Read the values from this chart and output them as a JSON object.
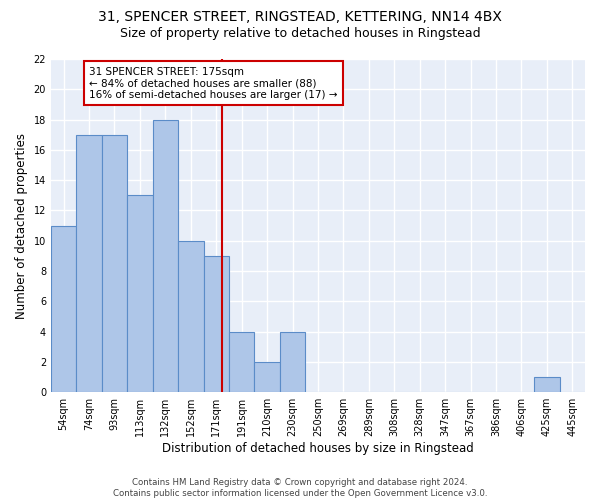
{
  "title1": "31, SPENCER STREET, RINGSTEAD, KETTERING, NN14 4BX",
  "title2": "Size of property relative to detached houses in Ringstead",
  "xlabel": "Distribution of detached houses by size in Ringstead",
  "ylabel": "Number of detached properties",
  "categories": [
    "54sqm",
    "74sqm",
    "93sqm",
    "113sqm",
    "132sqm",
    "152sqm",
    "171sqm",
    "191sqm",
    "210sqm",
    "230sqm",
    "250sqm",
    "269sqm",
    "289sqm",
    "308sqm",
    "328sqm",
    "347sqm",
    "367sqm",
    "386sqm",
    "406sqm",
    "425sqm",
    "445sqm"
  ],
  "values": [
    11,
    17,
    17,
    13,
    18,
    10,
    9,
    4,
    2,
    4,
    0,
    0,
    0,
    0,
    0,
    0,
    0,
    0,
    0,
    1,
    0
  ],
  "bar_color": "#aec6e8",
  "bar_edge_color": "#5b8cc8",
  "vline_x": 6.22,
  "vline_color": "#cc0000",
  "annotation_text": "31 SPENCER STREET: 175sqm\n← 84% of detached houses are smaller (88)\n16% of semi-detached houses are larger (17) →",
  "annotation_box_color": "white",
  "annotation_box_edge": "#cc0000",
  "ylim": [
    0,
    22
  ],
  "yticks": [
    0,
    2,
    4,
    6,
    8,
    10,
    12,
    14,
    16,
    18,
    20,
    22
  ],
  "footer1": "Contains HM Land Registry data © Crown copyright and database right 2024.",
  "footer2": "Contains public sector information licensed under the Open Government Licence v3.0.",
  "bg_color": "#e8eef8",
  "grid_color": "white",
  "title_fontsize": 10,
  "subtitle_fontsize": 9,
  "tick_fontsize": 7,
  "ylabel_fontsize": 8.5,
  "xlabel_fontsize": 8.5,
  "annotation_fontsize": 7.5
}
